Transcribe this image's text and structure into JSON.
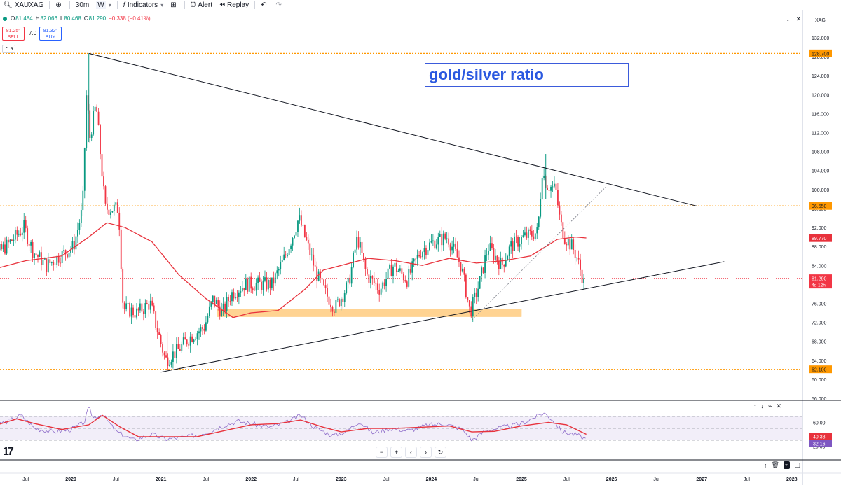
{
  "toolbar": {
    "symbol": "XAUXAG",
    "interval": "30m",
    "bar_style": "W",
    "indicators": "Indicators",
    "alert": "Alert",
    "replay": "Replay"
  },
  "legend": {
    "o_label": "O",
    "o": "81.484",
    "h_label": "H",
    "h": "82.066",
    "l_label": "L",
    "l": "80.468",
    "c_label": "C",
    "c": "81.290",
    "change": "−0.338 (−0.41%)"
  },
  "trade": {
    "sell_price": "81.25⁵",
    "sell_label": "SELL",
    "buy_price": "81.32⁵",
    "buy_label": "BUY",
    "spread": "7.0"
  },
  "collapse_count": "9",
  "symbol_currency": "XAG",
  "annotation": "gold/silver ratio",
  "icons": {
    "search": "search-icon",
    "add": "plus-circle-icon",
    "indicators": "indicators-icon",
    "templates": "grid-icon",
    "alert": "alert-clock-icon",
    "replay": "replay-icon",
    "undo": "undo-icon",
    "redo": "redo-icon",
    "logo": "tradingview-logo"
  },
  "colors": {
    "up": "#089981",
    "down": "#f23645",
    "ma": "#e8323c",
    "rsi": "#7e57c2",
    "rsi_ma": "#e8323c",
    "level": "#ff9800",
    "zone": "#ffcc80",
    "annotation": "#2b59e0"
  },
  "chart_data": {
    "type": "candlestick",
    "timeframe": "weekly",
    "y_axis": {
      "range": [
        56,
        132
      ],
      "ticks": [
        "132.000",
        "128.000",
        "124.000",
        "120.000",
        "116.000",
        "112.000",
        "108.000",
        "104.000",
        "100.000",
        "96.000",
        "92.000",
        "88.000",
        "84.000",
        "80.000",
        "76.000",
        "72.000",
        "68.000",
        "64.000",
        "60.000",
        "56.000"
      ]
    },
    "x_axis": {
      "labels": [
        "Jul",
        "2020",
        "Jul",
        "2021",
        "Jul",
        "2022",
        "Jul",
        "2023",
        "Jul",
        "2024",
        "Jul",
        "2025",
        "Jul",
        "2026",
        "Jul",
        "2027",
        "Jul",
        "2028"
      ],
      "dates": [
        2019.5,
        2020.0,
        2020.5,
        2021.0,
        2021.5,
        2022.0,
        2022.5,
        2023.0,
        2023.5,
        2024.0,
        2024.5,
        2025.0,
        2025.5,
        2026.0,
        2026.5,
        2027.0,
        2027.5,
        2028.0
      ]
    },
    "price_path": [
      [
        2019.1,
        85
      ],
      [
        2019.3,
        88
      ],
      [
        2019.5,
        92
      ],
      [
        2019.6,
        87
      ],
      [
        2019.75,
        84
      ],
      [
        2019.9,
        86
      ],
      [
        2020.05,
        88
      ],
      [
        2020.15,
        96
      ],
      [
        2020.2,
        124
      ],
      [
        2020.22,
        110
      ],
      [
        2020.3,
        118
      ],
      [
        2020.4,
        96
      ],
      [
        2020.55,
        96
      ],
      [
        2020.6,
        75
      ],
      [
        2020.75,
        74
      ],
      [
        2020.9,
        76
      ],
      [
        2021.0,
        69
      ],
      [
        2021.07,
        64
      ],
      [
        2021.2,
        66
      ],
      [
        2021.35,
        69
      ],
      [
        2021.5,
        71
      ],
      [
        2021.6,
        77
      ],
      [
        2021.7,
        74
      ],
      [
        2021.8,
        78
      ],
      [
        2021.95,
        80
      ],
      [
        2022.1,
        80
      ],
      [
        2022.25,
        80
      ],
      [
        2022.4,
        86
      ],
      [
        2022.55,
        94
      ],
      [
        2022.65,
        88
      ],
      [
        2022.75,
        82
      ],
      [
        2022.85,
        78
      ],
      [
        2022.95,
        75
      ],
      [
        2023.1,
        80
      ],
      [
        2023.2,
        90
      ],
      [
        2023.3,
        82
      ],
      [
        2023.45,
        79
      ],
      [
        2023.6,
        84
      ],
      [
        2023.75,
        81
      ],
      [
        2023.9,
        87
      ],
      [
        2024.05,
        89
      ],
      [
        2024.2,
        90
      ],
      [
        2024.35,
        84
      ],
      [
        2024.45,
        74
      ],
      [
        2024.55,
        80
      ],
      [
        2024.65,
        88
      ],
      [
        2024.8,
        84
      ],
      [
        2024.9,
        88
      ],
      [
        2025.05,
        90
      ],
      [
        2025.2,
        91
      ],
      [
        2025.25,
        104
      ],
      [
        2025.3,
        101
      ],
      [
        2025.4,
        100
      ],
      [
        2025.45,
        93
      ],
      [
        2025.5,
        90
      ],
      [
        2025.58,
        88
      ],
      [
        2025.63,
        86
      ],
      [
        2025.7,
        81.29
      ]
    ],
    "moving_average": [
      [
        2019.1,
        83
      ],
      [
        2019.5,
        85
      ],
      [
        2019.9,
        86
      ],
      [
        2020.2,
        90
      ],
      [
        2020.4,
        93
      ],
      [
        2020.6,
        92
      ],
      [
        2020.9,
        89
      ],
      [
        2021.2,
        82
      ],
      [
        2021.5,
        77
      ],
      [
        2021.8,
        73
      ],
      [
        2022.0,
        74
      ],
      [
        2022.3,
        74.5
      ],
      [
        2022.6,
        79
      ],
      [
        2022.8,
        83
      ],
      [
        2023.0,
        84
      ],
      [
        2023.3,
        85.5
      ],
      [
        2023.6,
        85
      ],
      [
        2023.9,
        84
      ],
      [
        2024.2,
        85.5
      ],
      [
        2024.5,
        84.5
      ],
      [
        2024.8,
        85
      ],
      [
        2025.1,
        86
      ],
      [
        2025.4,
        89.5
      ],
      [
        2025.6,
        90
      ],
      [
        2025.72,
        89.8
      ]
    ],
    "price_labels": [
      {
        "value": 128.7,
        "text": "128.700"
      },
      {
        "value": 96.55,
        "text": "96.550"
      },
      {
        "value": 89.77,
        "text": "89.770"
      },
      {
        "value": 81.29,
        "text": "81.290",
        "sub": "4d 12h"
      },
      {
        "value": 62.1,
        "text": "62.100"
      }
    ],
    "horizontal_levels": [
      128.7,
      96.55,
      62.1
    ],
    "trendlines": [
      {
        "from": [
          2020.2,
          128.7
        ],
        "to": [
          2026.95,
          96.5
        ],
        "style": "solid"
      },
      {
        "from": [
          2021.0,
          61.5
        ],
        "to": [
          2027.25,
          84.8
        ],
        "style": "solid"
      },
      {
        "from": [
          2024.45,
          72.5
        ],
        "to": [
          2025.95,
          100.8
        ],
        "style": "dotted"
      }
    ],
    "zones": [
      {
        "x": [
          2021.62,
          2025.0
        ],
        "y": [
          73.2,
          74.8
        ]
      }
    ],
    "rsi": {
      "ticks": [
        "60.00",
        "40.00",
        "20.00"
      ],
      "range": [
        10,
        90
      ],
      "value_label": "40.38",
      "rsi_label": "32.16",
      "band": [
        30,
        70
      ],
      "rsi_path": [
        [
          2019.1,
          55
        ],
        [
          2019.3,
          62
        ],
        [
          2019.45,
          72
        ],
        [
          2019.6,
          50
        ],
        [
          2019.8,
          44
        ],
        [
          2020.0,
          48
        ],
        [
          2020.15,
          60
        ],
        [
          2020.2,
          85
        ],
        [
          2020.25,
          68
        ],
        [
          2020.35,
          74
        ],
        [
          2020.5,
          45
        ],
        [
          2020.7,
          30
        ],
        [
          2020.9,
          40
        ],
        [
          2021.05,
          32
        ],
        [
          2021.3,
          36
        ],
        [
          2021.55,
          45
        ],
        [
          2021.7,
          55
        ],
        [
          2021.85,
          62
        ],
        [
          2022.0,
          58
        ],
        [
          2022.2,
          52
        ],
        [
          2022.4,
          60
        ],
        [
          2022.55,
          72
        ],
        [
          2022.7,
          52
        ],
        [
          2022.9,
          38
        ],
        [
          2023.05,
          44
        ],
        [
          2023.2,
          62
        ],
        [
          2023.35,
          42
        ],
        [
          2023.55,
          50
        ],
        [
          2023.75,
          46
        ],
        [
          2023.95,
          55
        ],
        [
          2024.15,
          58
        ],
        [
          2024.35,
          48
        ],
        [
          2024.45,
          30
        ],
        [
          2024.6,
          46
        ],
        [
          2024.8,
          52
        ],
        [
          2025.0,
          58
        ],
        [
          2025.25,
          76
        ],
        [
          2025.35,
          64
        ],
        [
          2025.45,
          44
        ],
        [
          2025.6,
          40
        ],
        [
          2025.72,
          32
        ]
      ],
      "ma_path": [
        [
          2019.1,
          52
        ],
        [
          2019.4,
          66
        ],
        [
          2019.6,
          58
        ],
        [
          2019.9,
          48
        ],
        [
          2020.2,
          56
        ],
        [
          2020.35,
          72
        ],
        [
          2020.55,
          52
        ],
        [
          2020.75,
          36
        ],
        [
          2021.0,
          36
        ],
        [
          2021.4,
          36
        ],
        [
          2021.7,
          46
        ],
        [
          2022.0,
          56
        ],
        [
          2022.3,
          58
        ],
        [
          2022.55,
          64
        ],
        [
          2022.8,
          52
        ],
        [
          2023.0,
          44
        ],
        [
          2023.3,
          50
        ],
        [
          2023.6,
          50
        ],
        [
          2023.9,
          52
        ],
        [
          2024.2,
          54
        ],
        [
          2024.45,
          44
        ],
        [
          2024.7,
          45
        ],
        [
          2025.0,
          54
        ],
        [
          2025.3,
          60
        ],
        [
          2025.5,
          56
        ],
        [
          2025.72,
          40
        ]
      ]
    }
  }
}
